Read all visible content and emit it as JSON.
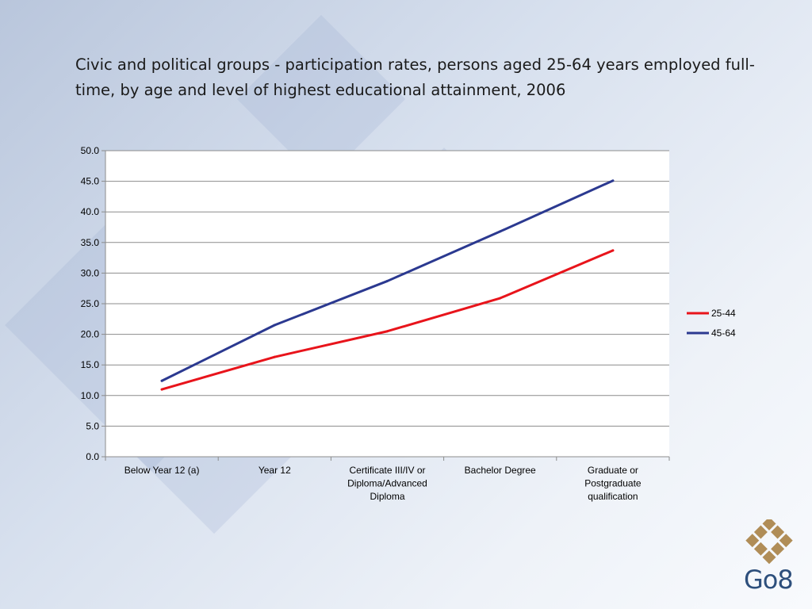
{
  "slide": {
    "title": "Civic and political groups - participation rates, persons aged 25-64 years employed full-time, by age and level of highest educational attainment, 2006",
    "logo_text": "Go8"
  },
  "chart_data": {
    "type": "line",
    "categories": [
      "Below Year 12 (a)",
      "Year 12",
      "Certificate III/IV or Diploma/Advanced Diploma",
      "Bachelor Degree",
      "Graduate or Postgraduate qualification"
    ],
    "category_lines": [
      [
        "Below Year 12 (a)"
      ],
      [
        "Year 12"
      ],
      [
        "Certificate III/IV or",
        "Diploma/Advanced",
        "Diploma"
      ],
      [
        "Bachelor Degree"
      ],
      [
        "Graduate or",
        "Postgraduate",
        "qualification"
      ]
    ],
    "series": [
      {
        "name": "25-44",
        "color": "#e8141b",
        "values": [
          11.0,
          16.3,
          20.5,
          25.9,
          33.7
        ]
      },
      {
        "name": "45-64",
        "color": "#2b3990",
        "values": [
          12.4,
          21.5,
          28.7,
          36.8,
          45.1
        ]
      }
    ],
    "yticks": [
      "0.0",
      "5.0",
      "10.0",
      "15.0",
      "20.0",
      "25.0",
      "30.0",
      "35.0",
      "40.0",
      "45.0",
      "50.0"
    ],
    "ylim": [
      0,
      50
    ],
    "legend": "right",
    "grid": true
  }
}
